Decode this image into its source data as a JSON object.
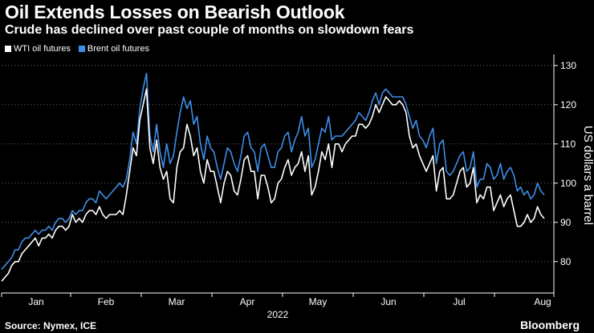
{
  "header": {
    "title": "Oil Extends Losses on Bearish Outlook",
    "subtitle": "Crude has declined over past couple of months on slowdown fears"
  },
  "legend": [
    {
      "label": "WTI oil futures",
      "color": "#ffffff"
    },
    {
      "label": "Brent oil futures",
      "color": "#3d8ee8"
    }
  ],
  "footer": {
    "source": "Source: Nymex, ICE",
    "brand": "Bloomberg"
  },
  "chart_data": {
    "type": "line",
    "ylabel": "US dollars a barrel",
    "xlabel": "2022",
    "ylim": [
      72,
      132
    ],
    "yticks": [
      80,
      90,
      100,
      110,
      120,
      130
    ],
    "xtick_labels": [
      "Jan",
      "Feb",
      "Mar",
      "Apr",
      "May",
      "Jun",
      "Jul",
      "Aug"
    ],
    "grid": "horizontal dotted",
    "legend_position": "top-left",
    "y_axis_side": "right",
    "series": [
      {
        "name": "WTI oil futures",
        "color": "#ffffff",
        "values": [
          75,
          76,
          77,
          79,
          80,
          80,
          82,
          83,
          84,
          85,
          86,
          84,
          86,
          86,
          87,
          86,
          88,
          89,
          89,
          88,
          89,
          92,
          90,
          91,
          90,
          92,
          93,
          93,
          92,
          94,
          92,
          91,
          92,
          92,
          92,
          93,
          92,
          97,
          103,
          109,
          107,
          116,
          120,
          124,
          109,
          105,
          111,
          104,
          101,
          103,
          96,
          95,
          104,
          108,
          109,
          115,
          112,
          107,
          109,
          103,
          100,
          106,
          103,
          103,
          99,
          95,
          100,
          103,
          102,
          98,
          97,
          101,
          106,
          107,
          103,
          103,
          96,
          102,
          102,
          99,
          95,
          96,
          100,
          101,
          104,
          106,
          102,
          104,
          105,
          108,
          103,
          107,
          97,
          99,
          103,
          108,
          106,
          110,
          104,
          110,
          110,
          108,
          110,
          111,
          112,
          112,
          115,
          115,
          114,
          115,
          117,
          120,
          118,
          120,
          122,
          121,
          120,
          120,
          121,
          120,
          118,
          112,
          109,
          110,
          107,
          105,
          103,
          105,
          107,
          98,
          103,
          104,
          96,
          96,
          97,
          100,
          103,
          104,
          99,
          100,
          104,
          95,
          97,
          96,
          99,
          99,
          93,
          95,
          97,
          94,
          96,
          97,
          93,
          89,
          89,
          90,
          92,
          90,
          91,
          94,
          92,
          91
        ],
        "dates": []
      },
      {
        "name": "Brent oil futures",
        "color": "#3d8ee8",
        "values": [
          78,
          79,
          80,
          81,
          83,
          83,
          85,
          86,
          86,
          87,
          88,
          87,
          88,
          88,
          89,
          88,
          90,
          91,
          91,
          90,
          91,
          93,
          92,
          93,
          93,
          95,
          96,
          96,
          95,
          98,
          97,
          96,
          97,
          98,
          99,
          100,
          99,
          101,
          106,
          113,
          110,
          119,
          124,
          128,
          112,
          108,
          115,
          108,
          104,
          110,
          105,
          107,
          113,
          118,
          122,
          119,
          121,
          115,
          117,
          110,
          106,
          112,
          109,
          108,
          104,
          101,
          105,
          109,
          108,
          105,
          103,
          107,
          112,
          113,
          109,
          108,
          103,
          109,
          110,
          107,
          104,
          104,
          108,
          109,
          112,
          113,
          108,
          111,
          113,
          117,
          112,
          114,
          104,
          106,
          110,
          114,
          113,
          117,
          111,
          112,
          112,
          112,
          113,
          114,
          115,
          116,
          118,
          117,
          116,
          118,
          121,
          123,
          120,
          123,
          124,
          123,
          122,
          122,
          122,
          122,
          120,
          117,
          114,
          116,
          112,
          111,
          109,
          112,
          114,
          105,
          110,
          111,
          103,
          102,
          103,
          105,
          107,
          108,
          103,
          104,
          108,
          99,
          101,
          101,
          105,
          104,
          101,
          102,
          105,
          101,
          103,
          104,
          102,
          98,
          99,
          97,
          98,
          96,
          97,
          100,
          98,
          97
        ]
      }
    ]
  }
}
